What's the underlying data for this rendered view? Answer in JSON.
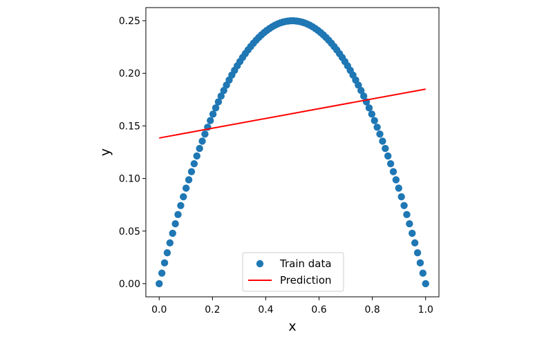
{
  "chart_data": {
    "type": "scatter",
    "xlabel": "x",
    "ylabel": "y",
    "xlim": [
      -0.05,
      1.05
    ],
    "ylim": [
      -0.0125,
      0.2625
    ],
    "xticks": [
      "0.0",
      "0.2",
      "0.4",
      "0.6",
      "0.8",
      "1.0"
    ],
    "yticks": [
      "0.00",
      "0.05",
      "0.10",
      "0.15",
      "0.20",
      "0.25"
    ],
    "grid": false,
    "legend_position": "lower center",
    "series": [
      {
        "name": "Train data",
        "kind": "scatter",
        "color": "#1f77b4",
        "function": "y = x(1 - x)",
        "x_range": [
          0,
          1
        ],
        "n_points": 100
      },
      {
        "name": "Prediction",
        "kind": "line",
        "color": "#ff0000",
        "x": [
          0,
          1
        ],
        "y": [
          0.1385,
          0.185
        ]
      }
    ]
  }
}
